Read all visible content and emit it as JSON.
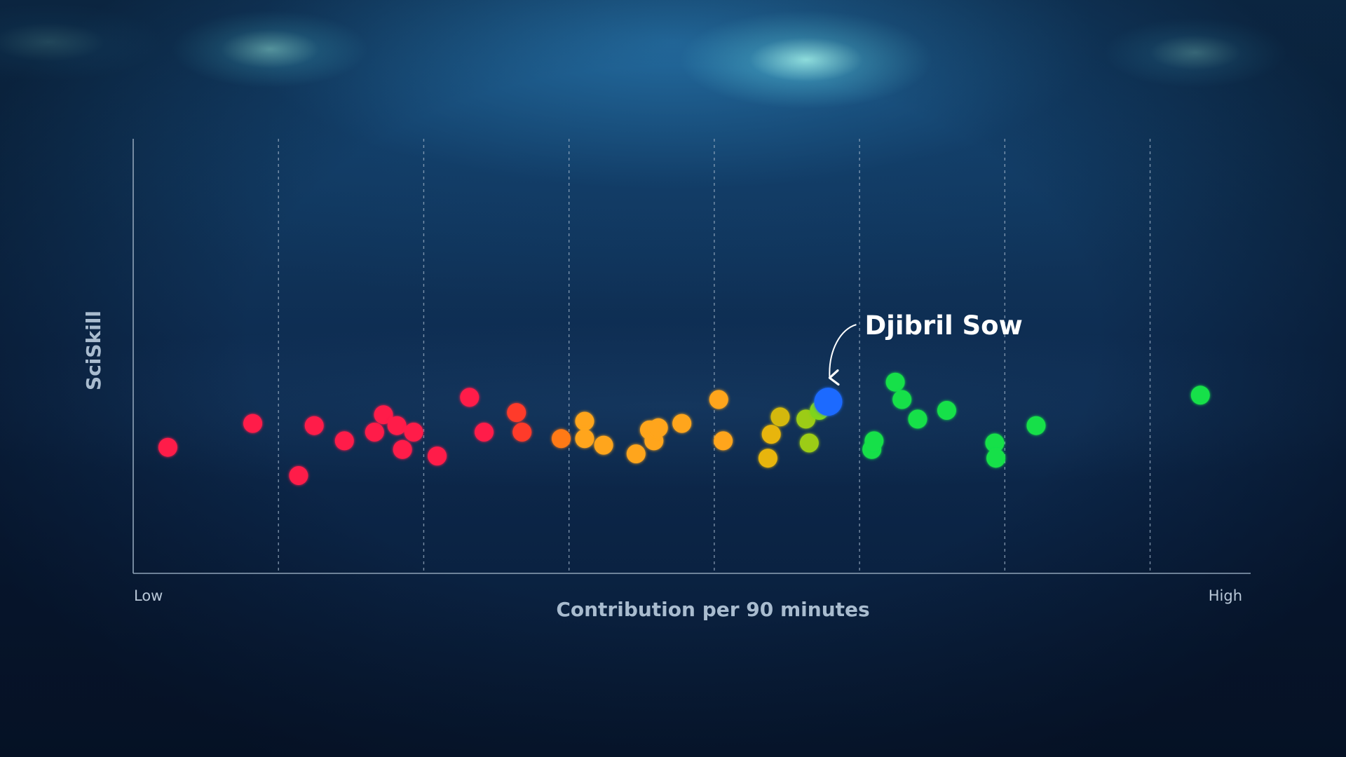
{
  "chart_data": {
    "type": "scatter",
    "xlabel": "Contribution per 90 minutes",
    "ylabel": "SciSkill",
    "x_tick_labels": {
      "low": "Low",
      "high": "High"
    },
    "xlim": [
      0,
      100
    ],
    "ylim": [
      0,
      100
    ],
    "x_gridlines": [
      13,
      26,
      39,
      52,
      65,
      78,
      91
    ],
    "grid": "vertical dashed",
    "highlight": {
      "label": "Djibril Sow",
      "x": 62.2,
      "y": 39.5,
      "color": "#1f6bff"
    },
    "points": [
      {
        "x": 3.1,
        "y": 29.0,
        "color": "#ff1e4a"
      },
      {
        "x": 10.7,
        "y": 34.5,
        "color": "#ff1e4a"
      },
      {
        "x": 14.8,
        "y": 22.5,
        "color": "#ff1e4a"
      },
      {
        "x": 16.2,
        "y": 34.0,
        "color": "#ff1e4a"
      },
      {
        "x": 18.9,
        "y": 30.5,
        "color": "#ff1e4a"
      },
      {
        "x": 21.6,
        "y": 32.5,
        "color": "#ff1e4a"
      },
      {
        "x": 22.4,
        "y": 36.5,
        "color": "#ff1e4a"
      },
      {
        "x": 23.6,
        "y": 34.0,
        "color": "#ff1e4a"
      },
      {
        "x": 24.1,
        "y": 28.5,
        "color": "#ff1e4a"
      },
      {
        "x": 25.1,
        "y": 32.5,
        "color": "#ff1e4a"
      },
      {
        "x": 27.2,
        "y": 27.0,
        "color": "#ff1e4a"
      },
      {
        "x": 30.1,
        "y": 40.5,
        "color": "#ff1e4a"
      },
      {
        "x": 31.4,
        "y": 32.5,
        "color": "#ff1e4a"
      },
      {
        "x": 34.3,
        "y": 37.0,
        "color": "#ff3a2a"
      },
      {
        "x": 34.8,
        "y": 32.5,
        "color": "#ff3a2a"
      },
      {
        "x": 38.3,
        "y": 31.0,
        "color": "#ff7a12"
      },
      {
        "x": 40.4,
        "y": 35.0,
        "color": "#ffa51a"
      },
      {
        "x": 40.4,
        "y": 31.0,
        "color": "#ffa51a"
      },
      {
        "x": 42.1,
        "y": 29.5,
        "color": "#ffa51a"
      },
      {
        "x": 45.0,
        "y": 27.5,
        "color": "#ffa51a"
      },
      {
        "x": 46.2,
        "y": 33.0,
        "color": "#ffa51a"
      },
      {
        "x": 46.6,
        "y": 30.5,
        "color": "#ffa51a"
      },
      {
        "x": 47.0,
        "y": 33.5,
        "color": "#ffa51a"
      },
      {
        "x": 49.1,
        "y": 34.5,
        "color": "#ffa51a"
      },
      {
        "x": 52.4,
        "y": 40.0,
        "color": "#ffa51a"
      },
      {
        "x": 52.8,
        "y": 30.5,
        "color": "#ffa51a"
      },
      {
        "x": 56.8,
        "y": 26.5,
        "color": "#e8b50e"
      },
      {
        "x": 57.1,
        "y": 32.0,
        "color": "#e8b50e"
      },
      {
        "x": 57.9,
        "y": 36.0,
        "color": "#d4b80e"
      },
      {
        "x": 60.2,
        "y": 35.5,
        "color": "#9ccc14"
      },
      {
        "x": 60.5,
        "y": 30.0,
        "color": "#9ccc14"
      },
      {
        "x": 61.4,
        "y": 37.5,
        "color": "#7ed41a"
      },
      {
        "x": 66.1,
        "y": 28.5,
        "color": "#19e04a"
      },
      {
        "x": 66.3,
        "y": 30.5,
        "color": "#19e04a"
      },
      {
        "x": 68.2,
        "y": 44.0,
        "color": "#19e04a"
      },
      {
        "x": 68.8,
        "y": 40.0,
        "color": "#19e04a"
      },
      {
        "x": 70.2,
        "y": 35.5,
        "color": "#19e04a"
      },
      {
        "x": 72.8,
        "y": 37.5,
        "color": "#19e04a"
      },
      {
        "x": 77.1,
        "y": 30.0,
        "color": "#19e04a"
      },
      {
        "x": 77.2,
        "y": 26.5,
        "color": "#19e04a"
      },
      {
        "x": 80.8,
        "y": 34.0,
        "color": "#19e04a"
      },
      {
        "x": 95.5,
        "y": 41.0,
        "color": "#19e04a"
      }
    ]
  }
}
